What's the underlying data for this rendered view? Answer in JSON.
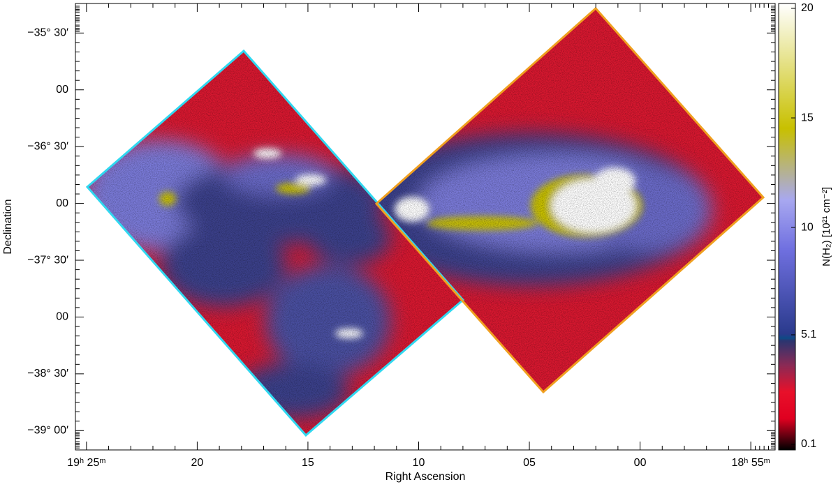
{
  "chart_data": {
    "type": "map",
    "x_label": "Right Ascension",
    "y_label": "Declination",
    "xlim": [
      85.5,
      53.9
    ],
    "ylim": [
      -39.17,
      -35.24
    ],
    "xticks": [
      {
        "value": 85,
        "label": "19ʰ 25ᵐ"
      },
      {
        "value": 80,
        "label": "20"
      },
      {
        "value": 75,
        "label": "15"
      },
      {
        "value": 70,
        "label": "10"
      },
      {
        "value": 65,
        "label": "05"
      },
      {
        "value": 60,
        "label": "00"
      },
      {
        "value": 55,
        "label": "18ʰ 55ᵐ"
      }
    ],
    "yticks": [
      {
        "value": -35.5,
        "label": "−35° 30′"
      },
      {
        "value": -36,
        "label": "00"
      },
      {
        "value": -36.5,
        "label": "−36° 30′"
      },
      {
        "value": -37,
        "label": "00"
      },
      {
        "value": -37.5,
        "label": "−37° 30′"
      },
      {
        "value": -38,
        "label": "00"
      },
      {
        "value": -38.5,
        "label": "−38° 30′"
      },
      {
        "value": -39,
        "label": "−39° 00′"
      }
    ],
    "colorbar": {
      "label": "N(H₂) [10²¹ cm⁻²]",
      "lim": [
        0.1,
        20
      ],
      "ticks": [
        0.1,
        5.1,
        10,
        15,
        20
      ]
    }
  }
}
